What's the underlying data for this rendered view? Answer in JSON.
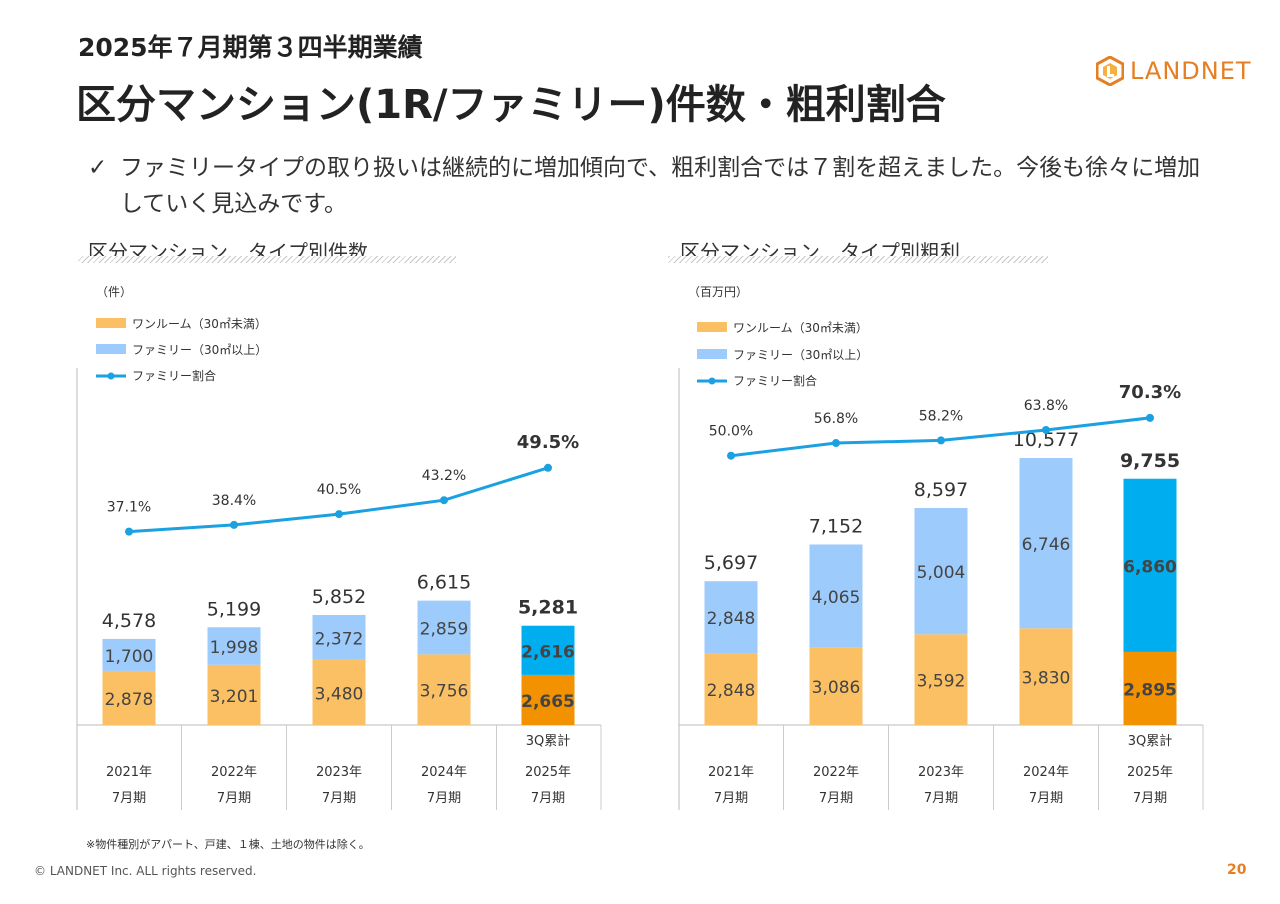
{
  "header": {
    "subtitle": "2025年７月期第３四半期業績",
    "title": "区分マンション(1R/ファミリー)件数・粗利割合"
  },
  "logo": {
    "text": "LANDNET",
    "icon": "landnet-logo-icon",
    "color": "#e67e22"
  },
  "bullet": {
    "icon": "check-icon",
    "check": "✓",
    "text": "ファミリータイプの取り扱いは継続的に増加傾向で、粗利割合では７割を超えました。今後も徐々に増加していく見込みです。"
  },
  "colors": {
    "oneroom": "#fbc063",
    "family": "#9dcbfb",
    "oneroom_highlight": "#f39200",
    "family_highlight": "#00aeef",
    "line": "#1ba1e2"
  },
  "chart_data": [
    {
      "type": "bar",
      "stacked": true,
      "title": "区分マンション　タイプ別件数",
      "unit": "（件）",
      "categories": [
        [
          "",
          "2021年",
          "7月期"
        ],
        [
          "",
          "2022年",
          "7月期"
        ],
        [
          "",
          "2023年",
          "7月期"
        ],
        [
          "",
          "2024年",
          "7月期"
        ],
        [
          "3Q累計",
          "2025年",
          "7月期"
        ]
      ],
      "series": [
        {
          "name": "ワンルーム（30㎡未満）",
          "values": [
            2878,
            3201,
            3480,
            3756,
            2665
          ],
          "labels": [
            "2,878",
            "3,201",
            "3,480",
            "3,756",
            "2,665"
          ]
        },
        {
          "name": "ファミリー（30㎡以上）",
          "values": [
            1700,
            1998,
            2372,
            2859,
            2616
          ],
          "labels": [
            "1,700",
            "1,998",
            "2,372",
            "2,859",
            "2,616"
          ]
        }
      ],
      "totals": [
        4578,
        5199,
        5852,
        6615,
        5281
      ],
      "total_labels": [
        "4,578",
        "5,199",
        "5,852",
        "6,615",
        "5,281"
      ],
      "line": {
        "name": "ファミリー割合",
        "values": [
          37.1,
          38.4,
          40.5,
          43.2,
          49.5
        ],
        "labels": [
          "37.1%",
          "38.4%",
          "40.5%",
          "43.2%",
          "49.5%"
        ],
        "ylim": [
          0,
          100
        ]
      },
      "ylim": [
        0,
        10000
      ],
      "highlight_last": true
    },
    {
      "type": "bar",
      "stacked": true,
      "title": "区分マンション　タイプ別粗利",
      "unit": "（百万円）",
      "categories": [
        [
          "",
          "2021年",
          "7月期"
        ],
        [
          "",
          "2022年",
          "7月期"
        ],
        [
          "",
          "2023年",
          "7月期"
        ],
        [
          "",
          "2024年",
          "7月期"
        ],
        [
          "3Q累計",
          "2025年",
          "7月期"
        ]
      ],
      "series": [
        {
          "name": "ワンルーム（30㎡未満）",
          "values": [
            2848,
            3086,
            3592,
            3830,
            2895
          ],
          "labels": [
            "2,848",
            "3,086",
            "3,592",
            "3,830",
            "2,895"
          ]
        },
        {
          "name": "ファミリー（30㎡以上）",
          "values": [
            2848,
            4065,
            5004,
            6746,
            6860
          ],
          "labels": [
            "2,848",
            "4,065",
            "5,004",
            "6,746",
            "6,860"
          ]
        }
      ],
      "totals": [
        5697,
        7152,
        8597,
        10577,
        9755
      ],
      "total_labels": [
        "5,697",
        "7,152",
        "8,597",
        "10,577",
        "9,755"
      ],
      "line": {
        "name": "ファミリー割合",
        "values": [
          50.0,
          56.8,
          58.2,
          63.8,
          70.3
        ],
        "labels": [
          "50.0%",
          "56.8%",
          "58.2%",
          "63.8%",
          "70.3%"
        ],
        "ylim": [
          0,
          100
        ]
      },
      "ylim": [
        0,
        10577
      ],
      "highlight_last": true
    }
  ],
  "footnote": "※物件種別がアパート、戸建、１棟、土地の物件は除く。",
  "footer": {
    "copyright": "© LANDNET Inc. ALL rights reserved.",
    "page": "20"
  }
}
